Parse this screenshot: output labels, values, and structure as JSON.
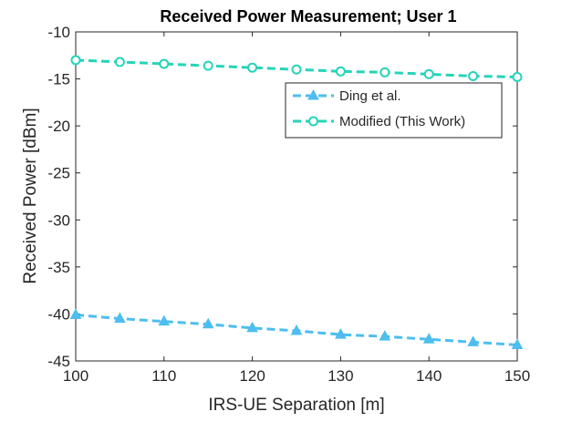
{
  "chart_data": {
    "type": "line",
    "title": "Received Power Measurement; User 1",
    "xlabel": "IRS-UE Separation [m]",
    "ylabel": "Received Power [dBm]",
    "xlim": [
      100,
      150
    ],
    "ylim": [
      -45,
      -10
    ],
    "xticks": [
      100,
      110,
      120,
      130,
      140,
      150
    ],
    "xtick_labels": [
      "100",
      "110",
      "120",
      "130",
      "140",
      "150"
    ],
    "yticks": [
      -45,
      -40,
      -35,
      -30,
      -25,
      -20,
      -15,
      -10
    ],
    "ytick_labels": [
      "-45",
      "-40",
      "-35",
      "-30",
      "-25",
      "-20",
      "-15",
      "-10"
    ],
    "grid": false,
    "legend_position": "top-right",
    "x": [
      100,
      105,
      110,
      115,
      120,
      125,
      130,
      135,
      140,
      145,
      150
    ],
    "series": [
      {
        "name": "Ding et al.",
        "color": "#4DBEEE",
        "marker": "triangle",
        "linestyle": "dashed",
        "values": [
          -40.1,
          -40.5,
          -40.8,
          -41.1,
          -41.5,
          -41.8,
          -42.2,
          -42.4,
          -42.7,
          -43.0,
          -43.3
        ]
      },
      {
        "name": "Modified (This Work)",
        "color": "#26D4B8",
        "marker": "circle",
        "linestyle": "dashed",
        "values": [
          -13.0,
          -13.2,
          -13.4,
          -13.6,
          -13.8,
          -14.0,
          -14.2,
          -14.3,
          -14.5,
          -14.7,
          -14.8
        ]
      }
    ]
  }
}
